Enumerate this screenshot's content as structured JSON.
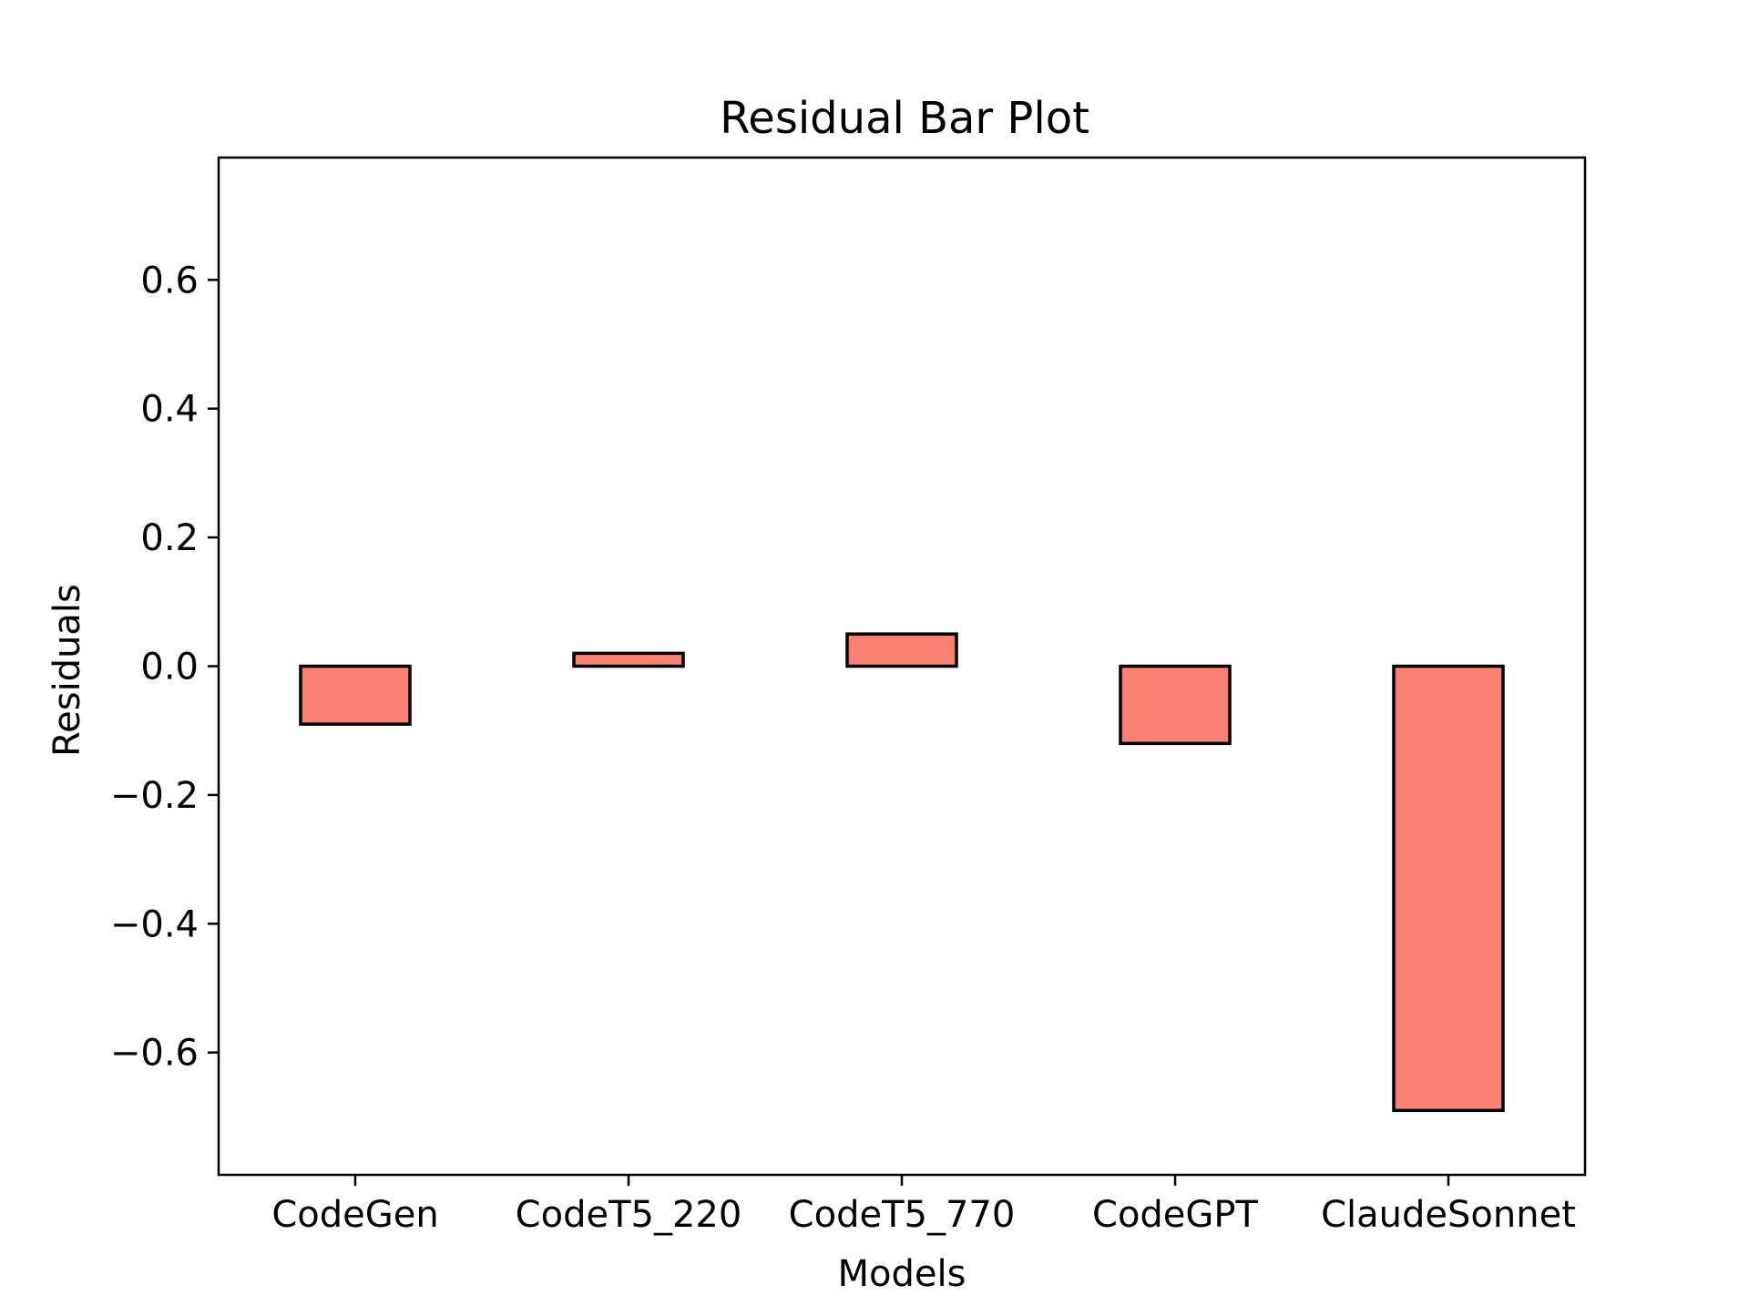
{
  "chart_data": {
    "type": "bar",
    "title": "Residual Bar Plot",
    "xlabel": "Models",
    "ylabel": "Residuals",
    "categories": [
      "CodeGen",
      "CodeT5_220",
      "CodeT5_770",
      "CodeGPT",
      "ClaudeSonnet"
    ],
    "values": [
      -0.09,
      0.02,
      0.05,
      -0.12,
      -0.69
    ],
    "ylim": [
      -0.79,
      0.79
    ],
    "yticks": [
      -0.6,
      -0.4,
      -0.2,
      0.0,
      0.2,
      0.4,
      0.6
    ],
    "ytick_labels": [
      "−0.6",
      "−0.4",
      "−0.2",
      "0.0",
      "0.2",
      "0.4",
      "0.6"
    ],
    "grid": false,
    "legend": "none",
    "bar_color": "#fa8072",
    "edge_color": "#000000"
  }
}
